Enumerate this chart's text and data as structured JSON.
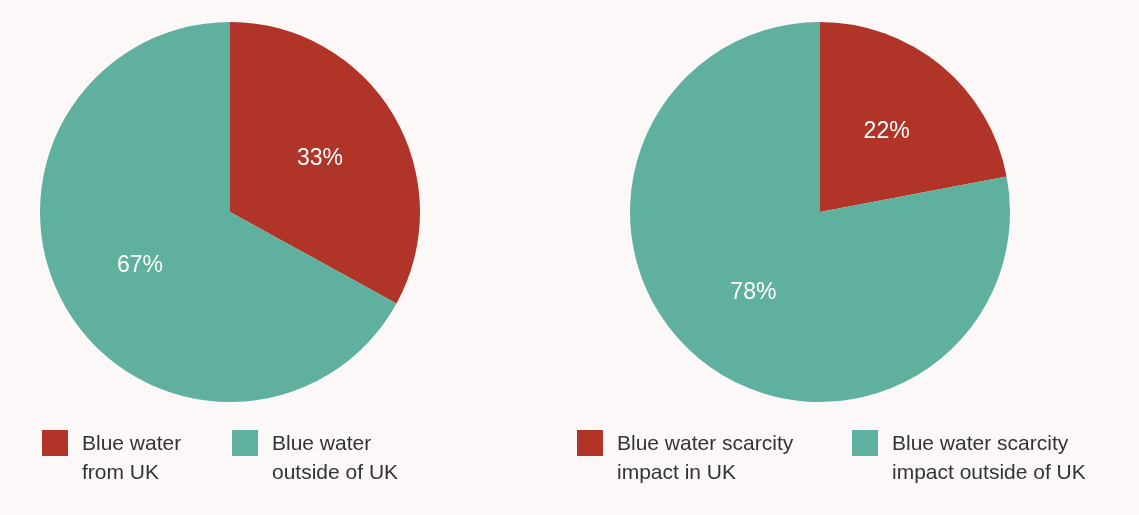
{
  "chart_data": [
    {
      "type": "pie",
      "categories": [
        "Blue water from UK",
        "Blue water outside of UK"
      ],
      "values": [
        33,
        67
      ],
      "colors": [
        "#b03427",
        "#5fb09e"
      ],
      "value_labels": [
        "33%",
        "67%"
      ],
      "legend": "bottom left"
    },
    {
      "type": "pie",
      "categories": [
        "Blue water scarcity impact in UK",
        "Blue water scarcity impact outside of UK"
      ],
      "values": [
        22,
        78
      ],
      "colors": [
        "#b03427",
        "#5fb09e"
      ],
      "value_labels": [
        "22%",
        "78%"
      ],
      "legend": "bottom left"
    }
  ]
}
